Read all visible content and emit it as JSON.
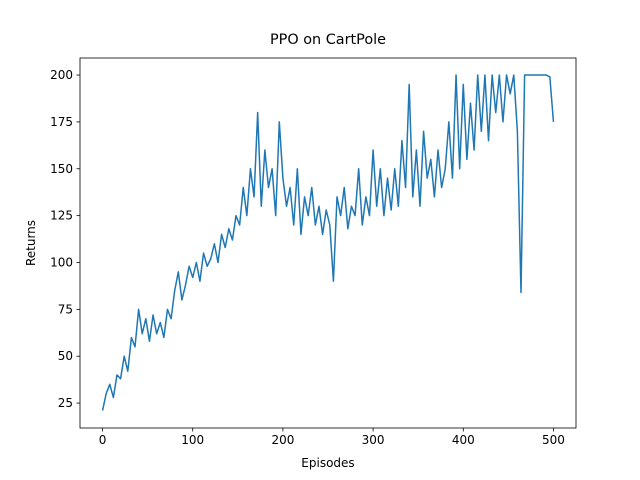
{
  "chart_data": {
    "type": "line",
    "title": "PPO on CartPole",
    "x_label": "Episodes",
    "y_label": "Returns",
    "x": [
      0,
      4,
      8,
      12,
      16,
      20,
      24,
      28,
      32,
      36,
      40,
      44,
      48,
      52,
      56,
      60,
      64,
      68,
      72,
      76,
      80,
      84,
      88,
      92,
      96,
      100,
      104,
      108,
      112,
      116,
      120,
      124,
      128,
      132,
      136,
      140,
      144,
      148,
      152,
      156,
      160,
      164,
      168,
      172,
      176,
      180,
      184,
      188,
      192,
      196,
      200,
      204,
      208,
      212,
      216,
      220,
      224,
      228,
      232,
      236,
      240,
      244,
      248,
      252,
      256,
      260,
      264,
      268,
      272,
      276,
      280,
      284,
      288,
      292,
      296,
      300,
      304,
      308,
      312,
      316,
      320,
      324,
      328,
      332,
      336,
      340,
      344,
      348,
      352,
      356,
      360,
      364,
      368,
      372,
      376,
      380,
      384,
      388,
      392,
      396,
      400,
      404,
      408,
      412,
      416,
      420,
      424,
      428,
      432,
      436,
      440,
      444,
      448,
      452,
      456,
      460,
      464,
      468,
      472,
      476,
      480,
      484,
      488,
      492,
      496,
      500
    ],
    "series": [
      {
        "name": "Returns",
        "color": "#1f77b4",
        "values": [
          21,
          30,
          35,
          28,
          40,
          38,
          50,
          42,
          60,
          55,
          75,
          62,
          70,
          58,
          72,
          62,
          68,
          60,
          75,
          70,
          85,
          95,
          80,
          88,
          98,
          92,
          100,
          90,
          105,
          98,
          102,
          110,
          100,
          115,
          108,
          118,
          112,
          125,
          120,
          140,
          125,
          150,
          135,
          180,
          130,
          160,
          140,
          150,
          125,
          175,
          145,
          130,
          140,
          120,
          150,
          115,
          135,
          125,
          140,
          120,
          130,
          115,
          128,
          120,
          90,
          135,
          125,
          140,
          118,
          130,
          125,
          150,
          120,
          135,
          125,
          160,
          130,
          150,
          125,
          145,
          128,
          150,
          130,
          165,
          140,
          195,
          135,
          160,
          130,
          170,
          145,
          155,
          135,
          160,
          140,
          150,
          175,
          145,
          200,
          150,
          195,
          155,
          185,
          160,
          200,
          170,
          200,
          165,
          200,
          180,
          200,
          175,
          200,
          190,
          200,
          170,
          84,
          200,
          200,
          200,
          200,
          200,
          200,
          200,
          199,
          175
        ]
      }
    ],
    "xlim": [
      -25,
      525
    ],
    "ylim": [
      11.7,
      209.1
    ],
    "xticks": [
      0,
      100,
      200,
      300,
      400,
      500
    ],
    "yticks": [
      25,
      50,
      75,
      100,
      125,
      150,
      175,
      200
    ],
    "grid": false
  }
}
